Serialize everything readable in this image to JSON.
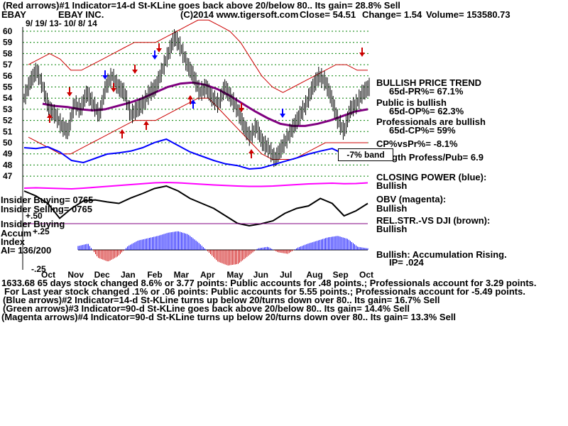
{
  "header": {
    "line1": "(Red arrows)#1 Indicator=14-d St-KLine goes back above 20/below 80..  Its gain= 28.8% Sell",
    "ticker": "EBAY",
    "company": "EBAY INC.",
    "copyright": "(C)2014 www.tigersoft.com",
    "close": "Close=  54.51",
    "change": "Change= 1.54",
    "volume": "Volume= 153580.73",
    "date_range": "9/ 19/ 13-  10/ 8/ 14"
  },
  "right_labels": {
    "trend_title": "BULLISH PRICE TREND",
    "pr": "65d-PR%= 67.1%",
    "public": "Public is bullish",
    "op": "65d-OP%= 62.3%",
    "professionals": "Professionals are bullish",
    "cp": "65d-CP%= 59%",
    "cpvspr": "CP%vsPr%= -8.1%",
    "strength": "gth Profess/Pub= 6.9",
    "band": "-7% band",
    "closing_power": "CLOSING POWER (blue):",
    "closing_power_state": "Bullish",
    "obv": "OBV (magenta):",
    "obv_state": "Bullish",
    "relstr": "REL.STR.-VS DJI (brown):",
    "relstr_state": "Bullish",
    "accum": "Bullish: Accumulation Rising.",
    "ip": "IP=  .024"
  },
  "left_labels": {
    "insider_buying": "Insider Buying= 0765",
    "insider_selling": "Insider Selling= 0765",
    "insider_buying2": "Insider Buying",
    "accum": "Accum",
    "index": "Index",
    "ai": "AI= 136/200",
    "plus50": "+.50",
    "plus25": "+.25",
    "minus25": "-.25",
    "overlap_code": "1633.6865"
  },
  "footer": {
    "line1": "1633.68 65 days stock changed  8.6% or  3.77 points:  Public accounts for  .48 points.;  Professionals account for  3.29 points.",
    "line2": "For Last year stock changed  .1% or  .06 points:  Public accounts for  5.55 points.;  Professionals account for -5.49 points.",
    "line3": "(Blue arrows)#2 Indicator=14-d St-KLine turns up below 20/turns down over 80..  Its gain= 16.7% Sell",
    "line4": "(Green arrows)#3 Indicator=90-d St-KLine goes back above 20/below 80..  Its gain= 14.4% Sell",
    "line5": "(Magenta arrows)#4 Indicator=90-d St-KLine turns up below 20/turns down over 80..  Its gain= 13.3% Sell"
  },
  "colors": {
    "price": "#000000",
    "band": "#cc0000",
    "ma": "#800080",
    "closing_power": "#0000ff",
    "obv": "#ff00ff",
    "relstr": "#000000",
    "accum_pos": "#0000ff",
    "accum_neg": "#cc0000",
    "grid": "#008000"
  },
  "chart_data": {
    "type": "line",
    "title": "EBAY INC.",
    "y_ticks": [
      60,
      59,
      58,
      57,
      56,
      55,
      54,
      53,
      52,
      51,
      50,
      49,
      48,
      47
    ],
    "ylim": [
      47,
      60
    ],
    "months": [
      "Oct",
      "Nov",
      "Dec",
      "Jan",
      "Feb",
      "Mar",
      "Apr",
      "May",
      "Jun",
      "Jul",
      "Aug",
      "Sep",
      "Oct"
    ],
    "price": [
      54,
      55.5,
      56.5,
      55,
      53,
      52.5,
      51.5,
      51,
      53.5,
      53,
      54.5,
      53.5,
      52.5,
      55,
      56,
      55,
      54.5,
      52.5,
      53,
      53.5,
      54.5,
      55,
      56.5,
      58,
      59.5,
      58.5,
      57,
      56,
      54.5,
      55,
      54,
      53.5,
      55,
      54,
      53,
      51.5,
      50.5,
      51.5,
      50,
      49.5,
      48.5,
      49.5,
      50.5,
      51.5,
      52.5,
      53.5,
      55,
      56,
      55.5,
      54,
      52,
      51,
      53,
      53.5,
      54.5,
      55
    ],
    "band_upper": [
      57,
      57.5,
      58,
      57.5,
      56.5,
      56.5,
      57,
      57.5,
      58,
      58.5,
      59,
      59,
      59,
      59.5,
      60,
      60.5,
      61,
      61,
      60.5,
      60,
      59,
      57.5,
      56,
      55,
      54.5,
      55,
      55.5,
      56,
      56.5,
      57,
      57,
      56.5,
      56.5
    ],
    "band_lower": [
      50.5,
      50,
      49.5,
      49,
      49,
      49.5,
      50,
      50.5,
      51,
      51.5,
      52,
      52,
      52,
      52.5,
      53,
      53.5,
      54,
      54,
      53,
      52,
      51,
      50,
      49,
      48.5,
      48.5,
      48.5,
      49,
      49.5,
      50,
      50,
      50,
      50,
      50
    ],
    "moving_avg": [
      53.5,
      53.3,
      53.2,
      53,
      52.9,
      53,
      53.3,
      53.6,
      54,
      54.5,
      55,
      55.3,
      55.4,
      55.2,
      54.8,
      54.2,
      53.5,
      52.8,
      52.2,
      51.7,
      51.5,
      51.5,
      51.7,
      52,
      52.4,
      52.8,
      53
    ],
    "series": [
      {
        "name": "CLOSING POWER (blue)",
        "values": [
          0.7,
          0.68,
          0.72,
          0.6,
          0.4,
          0.35,
          0.45,
          0.55,
          0.58,
          0.62,
          0.7,
          0.82,
          0.9,
          0.75,
          0.6,
          0.5,
          0.4,
          0.32,
          0.28,
          0.2,
          0.22,
          0.3,
          0.38,
          0.46,
          0.55,
          0.62,
          0.68,
          0.55,
          0.5,
          0.56
        ]
      },
      {
        "name": "OBV (magenta)",
        "values": [
          0.4,
          0.42,
          0.4,
          0.38,
          0.36,
          0.4,
          0.45,
          0.5,
          0.55,
          0.6,
          0.65,
          0.7,
          0.72,
          0.7,
          0.66,
          0.62,
          0.58,
          0.55,
          0.52,
          0.5,
          0.5,
          0.52,
          0.56,
          0.6,
          0.64,
          0.66,
          0.68,
          0.65,
          0.66,
          0.7
        ]
      },
      {
        "name": "REL.STR.-VS DJI (brown)",
        "values": [
          0.8,
          0.7,
          0.55,
          0.25,
          0.45,
          0.6,
          0.62,
          0.58,
          0.55,
          0.66,
          0.75,
          0.85,
          0.9,
          0.8,
          0.65,
          0.55,
          0.45,
          0.3,
          0.15,
          0.1,
          0.14,
          0.2,
          0.35,
          0.45,
          0.5,
          0.65,
          0.55,
          0.3,
          0.4,
          0.55
        ]
      },
      {
        "name": "Accum Index",
        "values": [
          0.05,
          0.08,
          -0.1,
          -0.15,
          -0.08,
          0.05,
          0.12,
          0.15,
          0.18,
          0.22,
          0.24,
          0.2,
          0.1,
          -0.02,
          -0.15,
          -0.2,
          -0.18,
          -0.08,
          0.02,
          0.04,
          -0.03,
          -0.05,
          0.03,
          0.08,
          0.12,
          0.16,
          0.18,
          0.14,
          0.04,
          0.02
        ]
      }
    ]
  }
}
